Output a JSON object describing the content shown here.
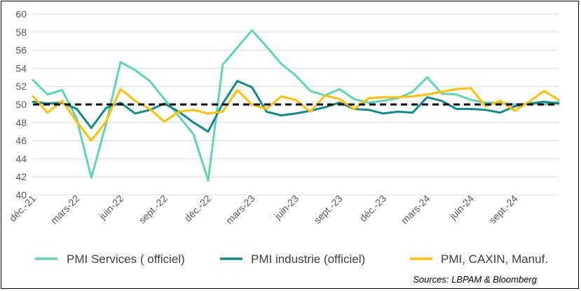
{
  "chart_data": {
    "type": "line",
    "title": "",
    "xlabel": "",
    "ylabel": "",
    "ylim": [
      40,
      60
    ],
    "yticks": [
      40,
      42,
      44,
      46,
      48,
      50,
      52,
      54,
      56,
      58,
      60
    ],
    "grid": true,
    "x": [
      "déc.-21",
      "janv.-22",
      "févr.-22",
      "mars-22",
      "avr.-22",
      "mai-22",
      "juin-22",
      "juil.-22",
      "août-22",
      "sept.-22",
      "oct.-22",
      "nov.-22",
      "déc.-22",
      "janv.-23",
      "févr.-23",
      "mars-23",
      "avr.-23",
      "mai-23",
      "juin-23",
      "juil.-23",
      "août-23",
      "sept.-23",
      "oct.-23",
      "nov.-23",
      "déc.-23",
      "janv.-24",
      "févr.-24",
      "mars-24",
      "avr.-24",
      "mai-24",
      "juin-24",
      "juil.-24",
      "août-24",
      "sept.-24",
      "oct.-24",
      "nov.-24",
      "déc.-24"
    ],
    "x_tick_labels": [
      {
        "index": 0,
        "label": "déc.-21"
      },
      {
        "index": 3,
        "label": "mars-22"
      },
      {
        "index": 6,
        "label": "juin-22"
      },
      {
        "index": 9,
        "label": "sept.-22"
      },
      {
        "index": 12,
        "label": "déc.-22"
      },
      {
        "index": 15,
        "label": "mars-23"
      },
      {
        "index": 18,
        "label": "juin-23"
      },
      {
        "index": 21,
        "label": "sept.-23"
      },
      {
        "index": 24,
        "label": "déc.-23"
      },
      {
        "index": 27,
        "label": "mars-24"
      },
      {
        "index": 30,
        "label": "juin-24"
      },
      {
        "index": 33,
        "label": "sept.-24"
      }
    ],
    "reference_line": {
      "value": 50,
      "style": "dashed",
      "color": "#000000"
    },
    "series": [
      {
        "name": "PMI Services ( officiel)",
        "color": "#5DD6B7",
        "values": [
          52.7,
          51.1,
          51.6,
          48.4,
          41.9,
          47.8,
          54.7,
          53.8,
          52.6,
          50.6,
          48.7,
          46.7,
          41.6,
          54.4,
          56.3,
          58.2,
          56.4,
          54.5,
          53.2,
          51.5,
          51.0,
          51.7,
          50.6,
          50.2,
          50.4,
          50.7,
          51.4,
          53.0,
          51.2,
          51.1,
          50.5,
          50.2,
          50.2,
          50.0,
          50.1,
          50.0,
          50.3
        ]
      },
      {
        "name": "PMI industrie (officiel)",
        "color": "#0E8C8C",
        "values": [
          50.3,
          50.1,
          50.2,
          49.5,
          47.4,
          49.6,
          50.2,
          49.0,
          49.4,
          50.1,
          49.2,
          48.0,
          47.0,
          50.1,
          52.6,
          51.9,
          49.2,
          48.8,
          49.0,
          49.3,
          49.7,
          50.2,
          49.5,
          49.4,
          49.0,
          49.2,
          49.1,
          50.8,
          50.4,
          49.5,
          49.5,
          49.4,
          49.1,
          49.8,
          50.1,
          50.3,
          50.1
        ]
      },
      {
        "name": "PMI, CAXIN, Manuf.",
        "color": "#FFC000",
        "values": [
          50.9,
          49.1,
          50.4,
          48.1,
          46.0,
          48.1,
          51.7,
          50.4,
          49.5,
          48.1,
          49.2,
          49.4,
          49.0,
          49.2,
          51.6,
          50.0,
          49.5,
          50.9,
          50.5,
          49.2,
          51.0,
          50.6,
          49.5,
          50.7,
          50.8,
          50.8,
          50.9,
          51.1,
          51.4,
          51.7,
          51.8,
          49.8,
          50.4,
          49.3,
          50.3,
          51.5,
          50.5
        ]
      }
    ],
    "legend_position": "bottom"
  },
  "source_note": "Sources: LBPAM & Bloomberg"
}
